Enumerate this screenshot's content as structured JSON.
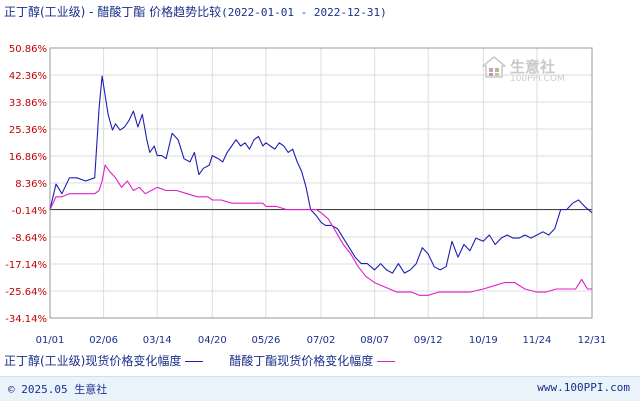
{
  "title": {
    "main": "正丁醇(工业级) - 醋酸丁酯 价格趋势比较",
    "range": "(2022-01-01 - 2022-12-31)"
  },
  "watermark": {
    "text": "生意社",
    "sub": "100PPI.COM"
  },
  "legend": [
    {
      "label": "正丁醇(工业级)现货价格变化幅度",
      "color": "#1f1fb4"
    },
    {
      "label": "醋酸丁酯现货价格变化幅度",
      "color": "#e020c8"
    }
  ],
  "footer": {
    "left": "© 2025.05 生意社",
    "right": "www.100PPI.com"
  },
  "colors": {
    "axis_text": "#c00000",
    "grid": "#dddddd",
    "zero_line": "#444444"
  },
  "chart_data": {
    "type": "line",
    "title": "正丁醇(工业级) - 醋酸丁酯 价格趋势比较",
    "xlabel": "",
    "ylabel": "",
    "ylim": [
      -34.14,
      50.86
    ],
    "y_ticks": [
      "50.86%",
      "42.36%",
      "33.86%",
      "25.36%",
      "16.86%",
      "8.36%",
      "-0.14%",
      "-8.64%",
      "-17.14%",
      "-25.64%",
      "-34.14%"
    ],
    "x_ticks": [
      "01/01",
      "02/06",
      "03/14",
      "04/20",
      "05/26",
      "07/02",
      "08/07",
      "09/12",
      "10/19",
      "11/24",
      "12/31"
    ],
    "grid": true,
    "zero_line": 0,
    "legend_position": "bottom",
    "series": [
      {
        "name": "正丁醇(工业级)现货价格变化幅度",
        "color": "#1f1fb4",
        "x": [
          "01/01",
          "01/05",
          "01/09",
          "01/14",
          "01/19",
          "01/25",
          "01/31",
          "02/03",
          "02/05",
          "02/07",
          "02/09",
          "02/12",
          "02/14",
          "02/17",
          "02/20",
          "02/23",
          "02/26",
          "03/01",
          "03/04",
          "03/07",
          "03/09",
          "03/12",
          "03/14",
          "03/17",
          "03/20",
          "03/24",
          "03/28",
          "04/01",
          "04/05",
          "04/08",
          "04/11",
          "04/14",
          "04/18",
          "04/20",
          "04/24",
          "04/27",
          "04/30",
          "05/03",
          "05/06",
          "05/09",
          "05/12",
          "05/15",
          "05/18",
          "05/21",
          "05/24",
          "05/26",
          "05/29",
          "06/01",
          "06/04",
          "06/07",
          "06/10",
          "06/13",
          "06/16",
          "06/19",
          "06/22",
          "06/25",
          "06/29",
          "07/02",
          "07/05",
          "07/09",
          "07/13",
          "07/17",
          "07/21",
          "07/25",
          "07/29",
          "08/02",
          "08/07",
          "08/11",
          "08/15",
          "08/19",
          "08/23",
          "08/27",
          "08/31",
          "09/04",
          "09/08",
          "09/12",
          "09/16",
          "09/20",
          "09/24",
          "09/28",
          "10/02",
          "10/06",
          "10/10",
          "10/14",
          "10/19",
          "10/23",
          "10/27",
          "10/31",
          "11/04",
          "11/08",
          "11/12",
          "11/16",
          "11/20",
          "11/24",
          "11/28",
          "12/02",
          "12/06",
          "12/10",
          "12/14",
          "12/18",
          "12/22",
          "12/26",
          "12/31"
        ],
        "y": [
          0,
          8,
          5,
          10,
          10,
          9,
          10,
          32,
          42,
          36,
          30,
          25,
          27,
          25,
          26,
          28,
          31,
          26,
          30,
          22,
          18,
          20,
          17,
          17,
          16,
          24,
          22,
          16,
          15,
          18,
          11,
          13,
          14,
          17,
          16,
          15,
          18,
          20,
          22,
          20,
          21,
          19,
          22,
          23,
          20,
          21,
          20,
          19,
          21,
          20,
          18,
          19,
          15,
          12,
          7,
          0,
          -2,
          -4,
          -5,
          -5,
          -6,
          -9,
          -12,
          -15,
          -17,
          -17,
          -19,
          -17,
          -19,
          -20,
          -17,
          -20,
          -19,
          -17,
          -12,
          -14,
          -18,
          -19,
          -18,
          -10,
          -15,
          -11,
          -13,
          -9,
          -10,
          -8,
          -11,
          -9,
          -8,
          -9,
          -9,
          -8,
          -9,
          -8,
          -7,
          -8,
          -6,
          0,
          0,
          2,
          3,
          1,
          -1
        ]
      },
      {
        "name": "醋酸丁酯现货价格变化幅度",
        "color": "#e020c8",
        "x": [
          "01/01",
          "01/05",
          "01/09",
          "01/14",
          "01/19",
          "01/25",
          "01/31",
          "02/03",
          "02/05",
          "02/07",
          "02/10",
          "02/14",
          "02/18",
          "02/22",
          "02/26",
          "03/02",
          "03/06",
          "03/10",
          "03/14",
          "03/20",
          "03/27",
          "04/03",
          "04/10",
          "04/17",
          "04/20",
          "04/26",
          "05/03",
          "05/10",
          "05/17",
          "05/24",
          "05/26",
          "06/02",
          "06/09",
          "06/16",
          "06/23",
          "06/29",
          "07/02",
          "07/07",
          "07/12",
          "07/17",
          "07/22",
          "07/27",
          "08/01",
          "08/07",
          "08/12",
          "08/17",
          "08/22",
          "08/27",
          "09/01",
          "09/06",
          "09/12",
          "09/19",
          "09/26",
          "10/03",
          "10/10",
          "10/19",
          "10/26",
          "11/02",
          "11/09",
          "11/16",
          "11/24",
          "11/30",
          "12/07",
          "12/14",
          "12/20",
          "12/24",
          "12/28",
          "12/31"
        ],
        "y": [
          0,
          4,
          4,
          5,
          5,
          5,
          5,
          6,
          9,
          14,
          12,
          10,
          7,
          9,
          6,
          7,
          5,
          6,
          7,
          6,
          6,
          5,
          4,
          4,
          3,
          3,
          2,
          2,
          2,
          2,
          1,
          1,
          0,
          0,
          0,
          0,
          -1,
          -3,
          -7,
          -11,
          -14,
          -18,
          -21,
          -23,
          -24,
          -25,
          -26,
          -26,
          -26,
          -27,
          -27,
          -26,
          -26,
          -26,
          -26,
          -25,
          -24,
          -23,
          -23,
          -25,
          -26,
          -26,
          -25,
          -25,
          -25,
          -22,
          -25,
          -25
        ]
      }
    ]
  }
}
